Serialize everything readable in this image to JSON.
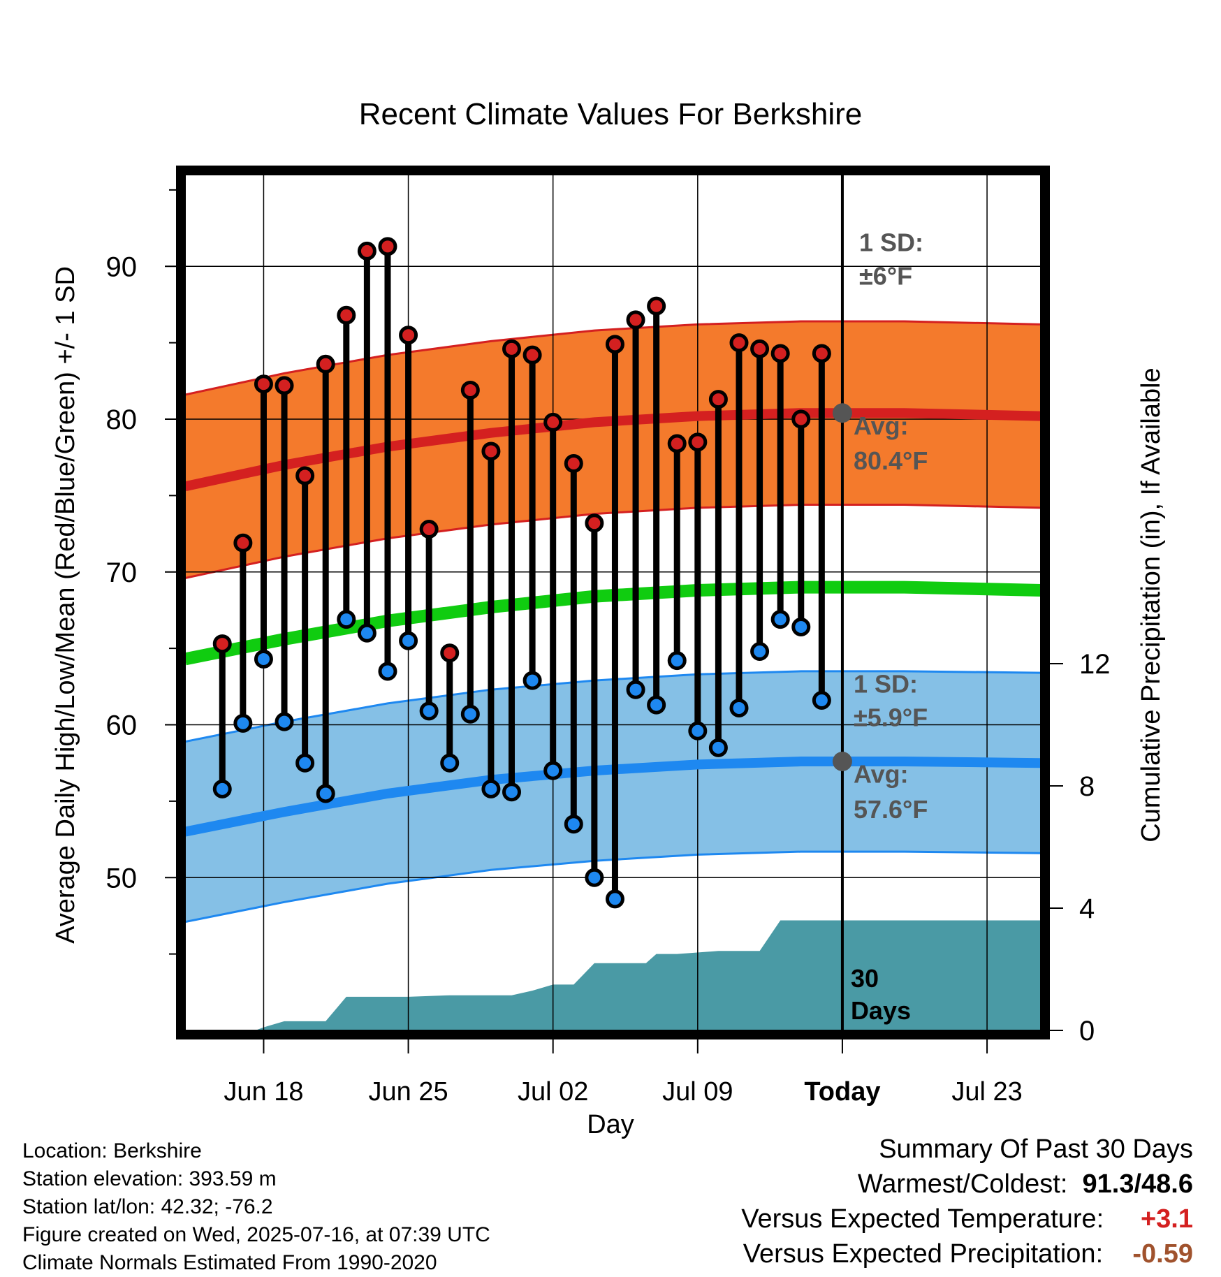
{
  "chart_data": {
    "type": "range-bar",
    "title": "Recent Climate Values For Berkshire",
    "xlabel": "Day",
    "ylabel": "Average Daily High/Low/Mean (Red/Blue/Green) +/- 1 SD",
    "y2label": "Cumulative Precipitation (in), If Available",
    "ylim": [
      40,
      96
    ],
    "y2lim": [
      0,
      28
    ],
    "yticks": [
      50,
      60,
      70,
      80,
      90
    ],
    "y2ticks": [
      0,
      4,
      8,
      12
    ],
    "xticks": [
      "Jun 18",
      "Jun 25",
      "Jul 02",
      "Jul 09",
      "Today",
      "Jul 23"
    ],
    "xtick_days": [
      2,
      9,
      16,
      23,
      30,
      37
    ],
    "x_start_day": -1.8,
    "x_end_day": 39.6,
    "today_day": 30,
    "today_label": [
      "30",
      "Days"
    ],
    "daily": {
      "day": [
        0,
        1,
        2,
        3,
        4,
        5,
        6,
        7,
        8,
        9,
        10,
        11,
        12,
        13,
        14,
        15,
        16,
        17,
        18,
        19,
        20,
        21,
        22,
        23,
        24,
        25,
        26,
        27,
        28,
        29
      ],
      "high": [
        65.3,
        71.9,
        82.3,
        82.2,
        76.3,
        83.6,
        86.8,
        91.0,
        91.3,
        85.5,
        72.8,
        64.7,
        81.9,
        77.9,
        84.6,
        84.2,
        79.8,
        77.1,
        73.2,
        84.9,
        86.5,
        87.4,
        78.4,
        78.5,
        81.3,
        85.0,
        84.6,
        84.3,
        80.0,
        84.3
      ],
      "low": [
        55.8,
        60.1,
        64.3,
        60.2,
        57.5,
        55.5,
        66.9,
        66.0,
        63.5,
        65.5,
        60.9,
        57.5,
        60.7,
        55.8,
        55.6,
        62.9,
        57.0,
        53.5,
        50.0,
        48.6,
        62.3,
        61.3,
        64.2,
        59.6,
        58.5,
        61.1,
        64.8,
        66.9,
        66.4,
        61.6
      ]
    },
    "normals": {
      "day": [
        -1.8,
        3,
        8,
        13,
        18,
        23,
        28,
        33,
        39.6
      ],
      "high_avg": [
        75.6,
        77.0,
        78.2,
        79.1,
        79.8,
        80.2,
        80.4,
        80.4,
        80.2
      ],
      "low_avg": [
        53.0,
        54.3,
        55.5,
        56.4,
        57.0,
        57.4,
        57.6,
        57.6,
        57.5
      ],
      "mean_avg": [
        64.3,
        65.6,
        66.8,
        67.7,
        68.4,
        68.8,
        69.0,
        69.0,
        68.8
      ],
      "high_sd": 6,
      "low_sd": 5.9
    },
    "precip": {
      "day": [
        -1.8,
        1.6,
        2.0,
        3.0,
        4.0,
        5.0,
        6.0,
        7.0,
        9.0,
        11.0,
        13.0,
        14.0,
        15.0,
        16.0,
        17.0,
        18.0,
        19.0,
        20.0,
        20.5,
        21.0,
        22.0,
        24.0,
        25.0,
        26.0,
        27.0,
        39.6
      ],
      "value": [
        0,
        0,
        0.1,
        0.3,
        0.3,
        0.3,
        1.1,
        1.1,
        1.1,
        1.15,
        1.15,
        1.15,
        1.3,
        1.5,
        1.5,
        2.2,
        2.2,
        2.2,
        2.2,
        2.5,
        2.5,
        2.6,
        2.6,
        2.6,
        3.6,
        3.6
      ]
    },
    "annotations": {
      "high_sd": [
        "1 SD:",
        "±6°F"
      ],
      "high_avg": [
        "Avg:",
        "80.4°F"
      ],
      "low_sd": [
        "1 SD:",
        "±5.9°F"
      ],
      "low_avg": [
        "Avg:",
        "57.6°F"
      ]
    },
    "colors": {
      "high_band": "#f47a2c",
      "high_line": "#d42020",
      "low_band": "#85c0e6",
      "low_line": "#1e88f0",
      "mean_line": "#10cc10",
      "precip": "#4a9aa5",
      "high_dot": "#d42020",
      "low_dot": "#1e88f0",
      "marker": "#555555",
      "annotation": "#555555"
    }
  },
  "info": {
    "location": "Location: Berkshire",
    "elevation": "Station elevation: 393.59 m",
    "latlon": "Station lat/lon: 42.32; -76.2",
    "created": "Figure created on Wed, 2025-07-16, at 07:39 UTC",
    "normals": "Climate Normals Estimated From 1990-2020"
  },
  "summary": {
    "title": "Summary Of Past 30 Days",
    "warm_cold_label": "Warmest/Coldest:",
    "warm_cold_value": "91.3/48.6",
    "temp_label": "Versus Expected Temperature:",
    "temp_value": "+3.1",
    "temp_color": "#d42020",
    "precip_label": "Versus Expected Precipitation:",
    "precip_value": "-0.59",
    "precip_color": "#a0522d"
  }
}
